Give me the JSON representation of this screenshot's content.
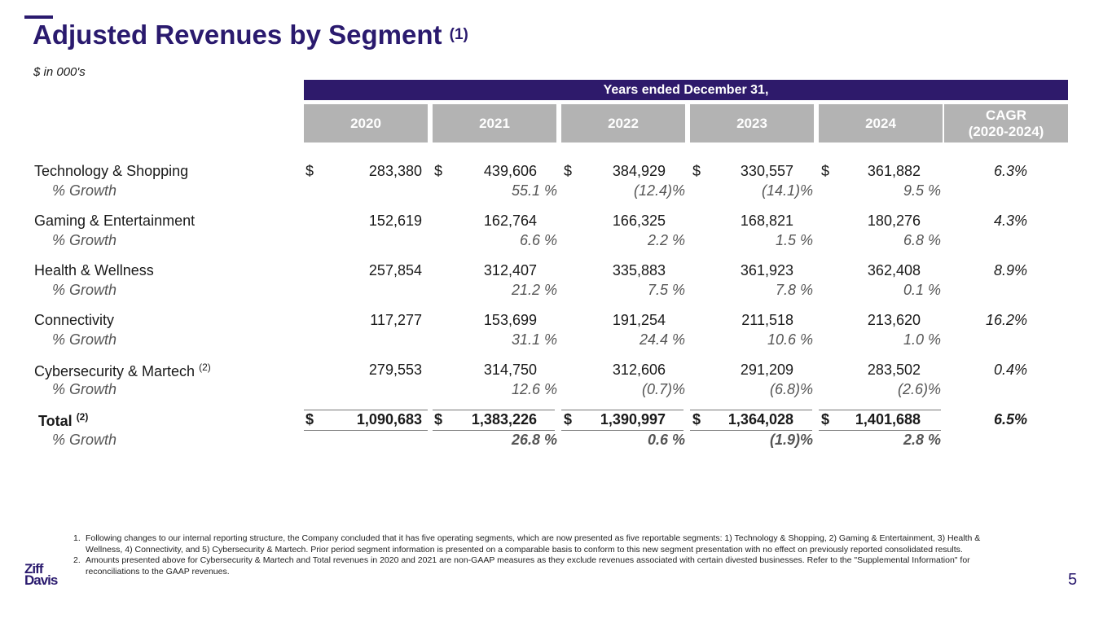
{
  "title": "Adjusted Revenues by Segment",
  "title_note": "(1)",
  "units": "$ in 000's",
  "banner": "Years ended December 31,",
  "columns": [
    "2020",
    "2021",
    "2022",
    "2023",
    "2024"
  ],
  "cagr_header_line1": "CAGR",
  "cagr_header_line2": "(2020-2024)",
  "currency_symbol": "$",
  "growth_label": "% Growth",
  "segments": [
    {
      "name": "Technology & Shopping",
      "note": "",
      "values": [
        "283,380",
        "439,606",
        "384,929",
        "330,557",
        "361,882"
      ],
      "growth": [
        "",
        "55.1 %",
        "(12.4)%",
        "(14.1)%",
        "9.5 %"
      ],
      "cagr": "6.3%"
    },
    {
      "name": "Gaming & Entertainment",
      "note": "",
      "values": [
        "152,619",
        "162,764",
        "166,325",
        "168,821",
        "180,276"
      ],
      "growth": [
        "",
        "6.6 %",
        "2.2 %",
        "1.5 %",
        "6.8 %"
      ],
      "cagr": "4.3%"
    },
    {
      "name": "Health & Wellness",
      "note": "",
      "values": [
        "257,854",
        "312,407",
        "335,883",
        "361,923",
        "362,408"
      ],
      "growth": [
        "",
        "21.2 %",
        "7.5 %",
        "7.8 %",
        "0.1 %"
      ],
      "cagr": "8.9%"
    },
    {
      "name": "Connectivity",
      "note": "",
      "values": [
        "117,277",
        "153,699",
        "191,254",
        "211,518",
        "213,620"
      ],
      "growth": [
        "",
        "31.1 %",
        "24.4 %",
        "10.6 %",
        "1.0 %"
      ],
      "cagr": "16.2%"
    },
    {
      "name": "Cybersecurity & Martech",
      "note": "(2)",
      "values": [
        "279,553",
        "314,750",
        "312,606",
        "291,209",
        "283,502"
      ],
      "growth": [
        "",
        "12.6 %",
        "(0.7)%",
        "(6.8)%",
        "(2.6)%"
      ],
      "cagr": "0.4%"
    }
  ],
  "total": {
    "name": "Total",
    "note": "(2)",
    "values": [
      "1,090,683",
      "1,383,226",
      "1,390,997",
      "1,364,028",
      "1,401,688"
    ],
    "growth": [
      "",
      "26.8 %",
      "0.6 %",
      "(1.9)%",
      "2.8 %"
    ],
    "cagr": "6.5%"
  },
  "footnotes": [
    {
      "num": "1.",
      "text": "Following changes to our internal reporting structure, the Company concluded that it has five operating segments, which are now presented as five reportable segments: 1) Technology & Shopping, 2) Gaming & Entertainment, 3) Health & Wellness, 4) Connectivity, and 5) Cybersecurity & Martech. Prior period segment information is presented on a comparable basis to conform to this new segment presentation with no effect on previously reported consolidated results."
    },
    {
      "num": "2.",
      "text": "Amounts presented above for Cybersecurity & Martech and Total revenues in 2020 and 2021 are non-GAAP measures as they exclude revenues associated with certain divested businesses. Refer to the \"Supplemental Information\" for reconciliations to the GAAP revenues."
    }
  ],
  "logo_line1": "Ziff",
  "logo_line2": "Davis",
  "page_number": "5"
}
